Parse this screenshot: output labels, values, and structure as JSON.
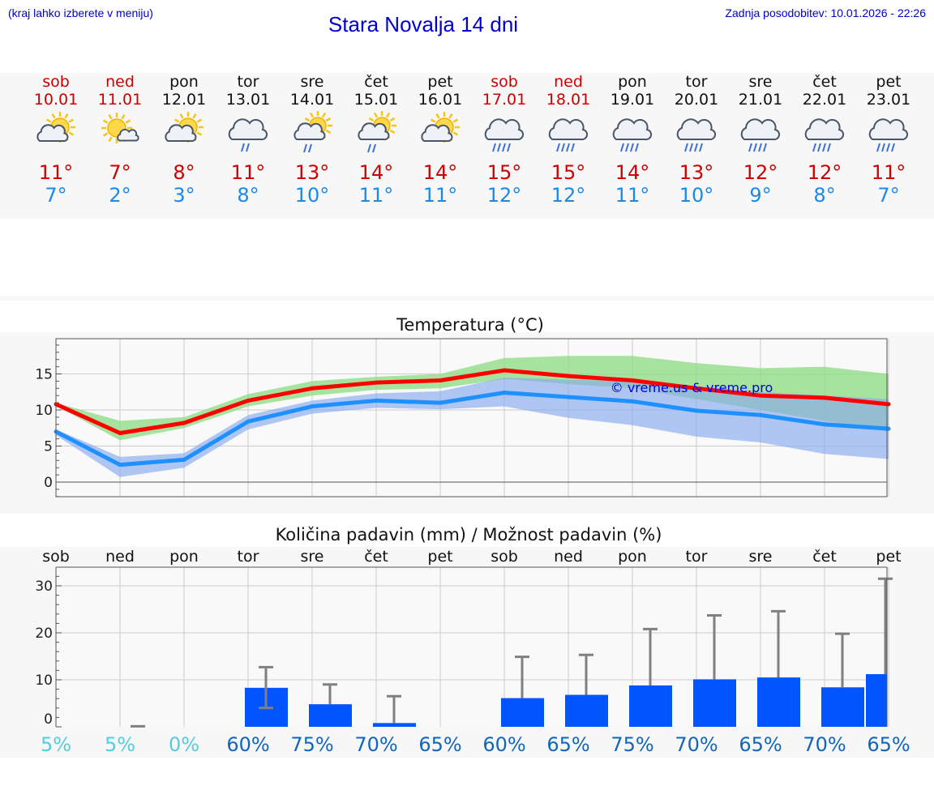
{
  "header": {
    "menu_hint": "(kraj lahko izberete v meniju)",
    "title": "Stara Novalja 14 dni",
    "updated": "Zadnja posodobitev: 10.01.2026 - 22:26"
  },
  "colors": {
    "weekend": "#cc0000",
    "weekday": "#111111",
    "tmax": "#cc0000",
    "tmin": "#1e88e5",
    "tmax_line": "#ff0000",
    "tmin_line": "#1e90ff",
    "tmax_band": "#90dd88",
    "tmin_band": "#88aaee",
    "bar": "#0055ff",
    "pct_low": "#55ccdd",
    "pct_high": "#1166bb",
    "watermark": "#0000ee"
  },
  "days": [
    {
      "name": "sob",
      "date": "10.01",
      "weekend": true,
      "icon": "sun-cloud-icon",
      "tmax": "11°",
      "tmin": "7°"
    },
    {
      "name": "ned",
      "date": "11.01",
      "weekend": true,
      "icon": "sun-small-cloud-icon",
      "tmax": "7°",
      "tmin": "2°"
    },
    {
      "name": "pon",
      "date": "12.01",
      "weekend": false,
      "icon": "sun-cloud-icon",
      "tmax": "8°",
      "tmin": "3°"
    },
    {
      "name": "tor",
      "date": "13.01",
      "weekend": false,
      "icon": "cloud-light-rain-icon",
      "tmax": "11°",
      "tmin": "8°"
    },
    {
      "name": "sre",
      "date": "14.01",
      "weekend": false,
      "icon": "sun-cloud-rain-icon",
      "tmax": "13°",
      "tmin": "10°"
    },
    {
      "name": "čet",
      "date": "15.01",
      "weekend": false,
      "icon": "sun-cloud-rain-icon",
      "tmax": "14°",
      "tmin": "11°"
    },
    {
      "name": "pet",
      "date": "16.01",
      "weekend": false,
      "icon": "sun-cloud-icon",
      "tmax": "14°",
      "tmin": "11°"
    },
    {
      "name": "sob",
      "date": "17.01",
      "weekend": true,
      "icon": "cloud-rain-icon",
      "tmax": "15°",
      "tmin": "12°"
    },
    {
      "name": "ned",
      "date": "18.01",
      "weekend": true,
      "icon": "cloud-rain-icon",
      "tmax": "15°",
      "tmin": "12°"
    },
    {
      "name": "pon",
      "date": "19.01",
      "weekend": false,
      "icon": "cloud-rain-icon",
      "tmax": "14°",
      "tmin": "11°"
    },
    {
      "name": "tor",
      "date": "20.01",
      "weekend": false,
      "icon": "cloud-rain-icon",
      "tmax": "13°",
      "tmin": "10°"
    },
    {
      "name": "sre",
      "date": "21.01",
      "weekend": false,
      "icon": "cloud-rain-icon",
      "tmax": "12°",
      "tmin": "9°"
    },
    {
      "name": "čet",
      "date": "22.01",
      "weekend": false,
      "icon": "cloud-rain-icon",
      "tmax": "12°",
      "tmin": "8°"
    },
    {
      "name": "pet",
      "date": "23.01",
      "weekend": false,
      "icon": "cloud-rain-icon",
      "tmax": "11°",
      "tmin": "7°"
    }
  ],
  "chart_data": [
    {
      "type": "line",
      "title": "Temperatura (°C)",
      "watermark": "© vreme.us & vreme.pro",
      "x": [
        0,
        1,
        2,
        3,
        4,
        5,
        6,
        7,
        8,
        9,
        10,
        11,
        12,
        13
      ],
      "yticks": [
        0,
        5,
        10,
        15
      ],
      "ylim": [
        -2,
        20
      ],
      "grid": true,
      "series": [
        {
          "name": "max",
          "values": [
            10.8,
            6.8,
            8.2,
            11.3,
            13.0,
            13.8,
            14.1,
            15.5,
            14.7,
            14.1,
            13.0,
            12.0,
            11.7,
            10.8
          ],
          "band_low": [
            10.6,
            5.8,
            7.5,
            10.5,
            12.0,
            12.8,
            13.0,
            14.3,
            13.6,
            13.0,
            11.5,
            10.0,
            8.5,
            7.0
          ],
          "band_high": [
            11.0,
            8.5,
            9.0,
            12.2,
            14.0,
            14.6,
            15.0,
            17.2,
            17.5,
            17.5,
            16.5,
            15.8,
            16.0,
            15.0
          ]
        },
        {
          "name": "min",
          "values": [
            7.0,
            2.4,
            3.1,
            8.4,
            10.5,
            11.3,
            11.0,
            12.4,
            11.8,
            11.2,
            9.9,
            9.3,
            8.0,
            7.4
          ],
          "band_low": [
            6.5,
            0.7,
            2.0,
            7.3,
            9.5,
            10.3,
            10.1,
            10.5,
            8.9,
            7.9,
            6.3,
            5.5,
            3.9,
            3.2
          ],
          "band_high": [
            7.3,
            3.5,
            4.0,
            9.3,
            11.3,
            12.3,
            12.6,
            14.5,
            14.2,
            14.0,
            13.3,
            12.5,
            12.0,
            11.5
          ]
        }
      ]
    },
    {
      "type": "bar",
      "title": "Količina padavin (mm) / Možnost padavin (%)",
      "categories": [
        "sob",
        "ned",
        "pon",
        "tor",
        "sre",
        "čet",
        "pet",
        "sob",
        "ned",
        "pon",
        "tor",
        "sre",
        "čet",
        "pet"
      ],
      "values": [
        0,
        0,
        0,
        8.3,
        4.8,
        0.8,
        0,
        6.1,
        6.8,
        8.8,
        10.1,
        10.5,
        8.4,
        11.2
      ],
      "errors_max": [
        0,
        0.1,
        0,
        12.7,
        9.0,
        6.5,
        0,
        14.9,
        15.3,
        20.8,
        23.7,
        24.6,
        19.8,
        31.5
      ],
      "errors_min": [
        0,
        0,
        0,
        4.0,
        4.8,
        0.8,
        0,
        6.1,
        6.8,
        8.8,
        10.1,
        10.5,
        8.4,
        11.2
      ],
      "yticks": [
        0,
        10,
        20,
        30
      ],
      "ylim": [
        -2,
        34
      ],
      "probability": [
        "5%",
        "5%",
        "0%",
        "60%",
        "75%",
        "70%",
        "65%",
        "60%",
        "65%",
        "75%",
        "70%",
        "65%",
        "70%",
        "65%"
      ]
    }
  ]
}
